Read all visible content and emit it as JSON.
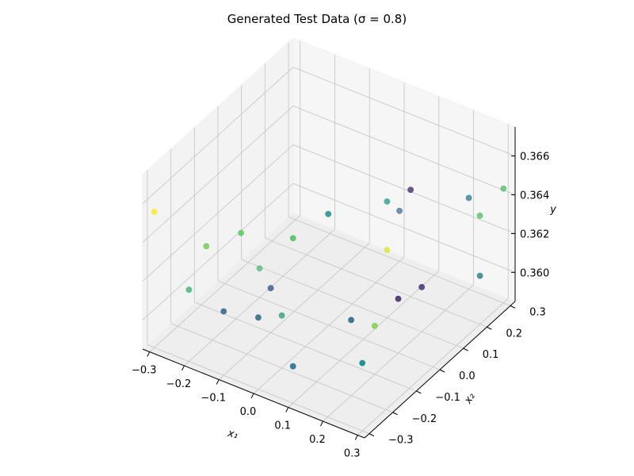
{
  "chart_data": {
    "type": "scatter",
    "projection": "3d",
    "title": "Generated Test Data (σ = 0.8)",
    "xlabel": "x₁",
    "ylabel": "x₂",
    "zlabel": "y",
    "xlim": [
      -0.32,
      0.32
    ],
    "ylim": [
      -0.32,
      0.32
    ],
    "zlim": [
      0.3585,
      0.3675
    ],
    "x_ticks": [
      "−0.3",
      "−0.2",
      "−0.1",
      "0.0",
      "0.1",
      "0.2",
      "0.3"
    ],
    "y_ticks": [
      "−0.3",
      "−0.2",
      "−0.1",
      "0.0",
      "0.1",
      "0.2",
      "0.3"
    ],
    "z_ticks": [
      "0.360",
      "0.362",
      "0.364",
      "0.366"
    ],
    "grid": true,
    "colormap": "viridis",
    "points": [
      {
        "x": -0.3,
        "y": -0.3,
        "z": 0.3655,
        "c": 1.0
      },
      {
        "x": -0.15,
        "y": -0.3,
        "z": 0.3648,
        "c": 0.78
      },
      {
        "x": -0.05,
        "y": -0.3,
        "z": 0.3662,
        "c": 0.75
      },
      {
        "x": 0.1,
        "y": -0.3,
        "z": 0.367,
        "c": 0.72
      },
      {
        "x": 0.1,
        "y": -0.15,
        "z": 0.3666,
        "c": 0.5
      },
      {
        "x": 0.1,
        "y": 0.1,
        "z": 0.3645,
        "c": 0.55
      },
      {
        "x": 0.1,
        "y": 0.2,
        "z": 0.364,
        "c": 0.1
      },
      {
        "x": -0.2,
        "y": -0.3,
        "z": 0.3622,
        "c": 0.65
      },
      {
        "x": -0.1,
        "y": -0.3,
        "z": 0.3618,
        "c": 0.3
      },
      {
        "x": 0.0,
        "y": -0.3,
        "z": 0.3622,
        "c": 0.35
      },
      {
        "x": 0.2,
        "y": -0.2,
        "z": 0.3624,
        "c": 0.35
      },
      {
        "x": 0.1,
        "y": 0.1,
        "z": 0.362,
        "c": 0.95
      },
      {
        "x": 0.2,
        "y": 0.0,
        "z": 0.3613,
        "c": 0.1
      },
      {
        "x": 0.2,
        "y": 0.3,
        "z": 0.3632,
        "c": 0.4
      },
      {
        "x": 0.0,
        "y": -0.2,
        "z": 0.3612,
        "c": 0.6
      },
      {
        "x": 0.3,
        "y": -0.3,
        "z": 0.362,
        "c": 0.5
      },
      {
        "x": 0.2,
        "y": -0.1,
        "z": 0.361,
        "c": 0.8
      },
      {
        "x": 0.3,
        "y": 0.2,
        "z": 0.3641,
        "c": 0.72
      },
      {
        "x": 0.3,
        "y": 0.3,
        "z": 0.3644,
        "c": 0.7
      },
      {
        "x": -0.1,
        "y": -0.1,
        "z": 0.3608,
        "c": 0.25
      },
      {
        "x": -0.2,
        "y": 0.0,
        "z": 0.36,
        "c": 0.65
      },
      {
        "x": 0.1,
        "y": -0.3,
        "z": 0.3604,
        "c": 0.38
      },
      {
        "x": 0.0,
        "y": 0.3,
        "z": 0.3611,
        "c": 0.3
      },
      {
        "x": 0.2,
        "y": 0.1,
        "z": 0.3608,
        "c": 0.12
      },
      {
        "x": 0.3,
        "y": 0.2,
        "z": 0.361,
        "c": 0.42
      }
    ]
  }
}
